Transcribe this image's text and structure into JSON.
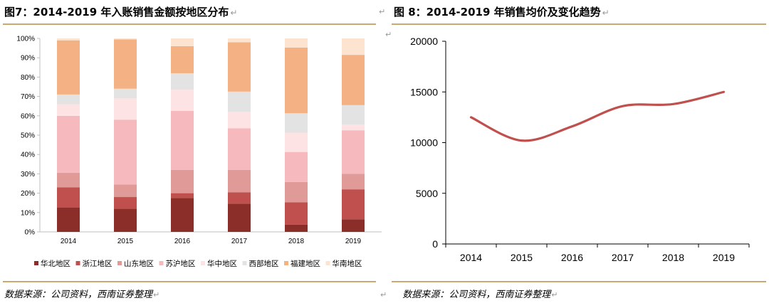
{
  "left": {
    "title": "图7：2014-2019 年入账销售金额按地区分布",
    "source": "数据来源：公司资料，西南证券整理"
  },
  "right": {
    "title": "图 8：2014-2019 年销售均价及变化趋势",
    "source": "数据来源：公司资料，西南证券整理"
  },
  "colors": {
    "rule": "#c9a96e",
    "line": "#c0504d"
  },
  "chart_data": [
    {
      "type": "bar",
      "stacked": true,
      "percent": true,
      "categories": [
        "2014",
        "2015",
        "2016",
        "2017",
        "2018",
        "2019"
      ],
      "ylim": [
        0,
        100
      ],
      "yticks": [
        "0%",
        "10%",
        "20%",
        "30%",
        "40%",
        "50%",
        "60%",
        "70%",
        "80%",
        "90%",
        "100%"
      ],
      "legend_position": "bottom",
      "series": [
        {
          "name": "华北地区",
          "color": "#8b2e2a",
          "values": [
            12.5,
            12,
            17.5,
            14.5,
            3.8,
            6.5
          ]
        },
        {
          "name": "浙江地区",
          "color": "#c0504d",
          "values": [
            10.5,
            6,
            2.5,
            6,
            11.5,
            15.5
          ]
        },
        {
          "name": "山东地区",
          "color": "#e09a98",
          "values": [
            7.5,
            6.5,
            12,
            11.5,
            10.5,
            8
          ]
        },
        {
          "name": "苏沪地区",
          "color": "#f6b9bd",
          "values": [
            29.5,
            33.5,
            30.5,
            21.5,
            15.5,
            22.5
          ]
        },
        {
          "name": "华中地区",
          "color": "#fde3e4",
          "values": [
            6,
            11,
            11,
            8.5,
            10,
            3
          ]
        },
        {
          "name": "西部地区",
          "color": "#e3e3e3",
          "values": [
            5,
            5,
            8.5,
            10.5,
            10,
            10
          ]
        },
        {
          "name": "福建地区",
          "color": "#f4b183",
          "values": [
            28,
            25.5,
            14,
            25.5,
            34,
            26
          ]
        },
        {
          "name": "华南地区",
          "color": "#fce4d0",
          "values": [
            1,
            0.5,
            4,
            2,
            4.7,
            8.5
          ]
        }
      ]
    },
    {
      "type": "line",
      "x": [
        "2014",
        "2015",
        "2016",
        "2017",
        "2018",
        "2019"
      ],
      "values": [
        12500,
        10200,
        11600,
        13600,
        13800,
        15000
      ],
      "ylim": [
        0,
        20000
      ],
      "yticks": [
        "0",
        "5000",
        "10000",
        "15000",
        "20000"
      ],
      "grid": false
    }
  ]
}
